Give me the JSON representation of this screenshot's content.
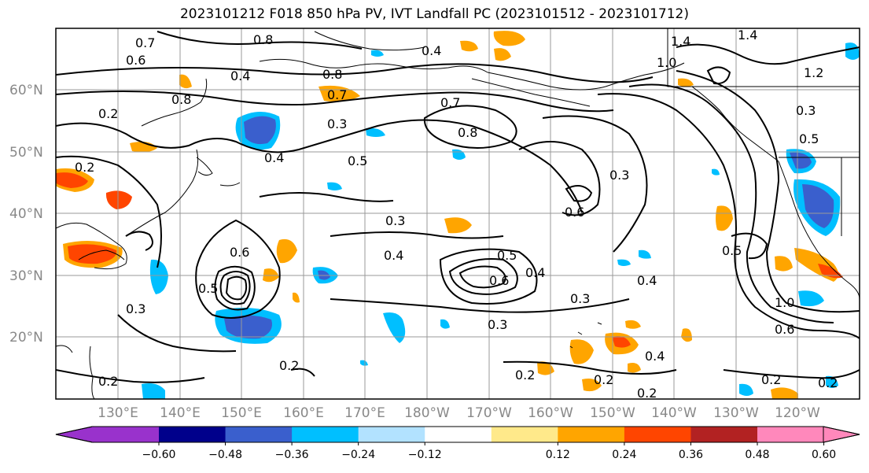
{
  "title": "2023101212 F018 850 hPa PV, IVT Landfall PC (2023101512 - 2023101712)",
  "lat_labels": [
    "60°N",
    "50°N",
    "40°N",
    "30°N",
    "20°N"
  ],
  "lon_labels": [
    "130°E",
    "140°E",
    "150°E",
    "160°E",
    "170°E",
    "180°W",
    "170°W",
    "160°W",
    "150°W",
    "140°W",
    "130°W",
    "120°W"
  ],
  "colorbar": {
    "colors": [
      "#9932cc",
      "#00008b",
      "#3a5fcd",
      "#00bfff",
      "#b2e2ff",
      "#ffffff",
      "#ffe98a",
      "#ffa500",
      "#ff4500",
      "#b22222",
      "#ff88bb"
    ],
    "ticks": [
      "−0.60",
      "−0.48",
      "−0.36",
      "−0.24",
      "−0.12",
      "0.12",
      "0.24",
      "0.36",
      "0.48",
      "0.60"
    ]
  },
  "contour_labels": [
    {
      "t": "0.7"
    },
    {
      "t": "0.6"
    },
    {
      "t": "0.8"
    },
    {
      "t": "0.4"
    },
    {
      "t": "0.4"
    },
    {
      "t": "1.4"
    },
    {
      "t": "1.4"
    },
    {
      "t": "1.0"
    },
    {
      "t": "1.2"
    },
    {
      "t": "0.2"
    },
    {
      "t": "0.8"
    },
    {
      "t": "0.7"
    },
    {
      "t": "0.3"
    },
    {
      "t": "0.8"
    },
    {
      "t": "0.7"
    },
    {
      "t": "0.8"
    },
    {
      "t": "0.5"
    },
    {
      "t": "0.2"
    },
    {
      "t": "0.4"
    },
    {
      "t": "0.5"
    },
    {
      "t": "0.3"
    },
    {
      "t": "0.6"
    },
    {
      "t": "0.3"
    },
    {
      "t": "0.3"
    },
    {
      "t": "0.4"
    },
    {
      "t": "0.5"
    },
    {
      "t": "0.6"
    },
    {
      "t": "0.4"
    },
    {
      "t": "0.5"
    },
    {
      "t": "0.4"
    },
    {
      "t": "0.3"
    },
    {
      "t": "0.3"
    },
    {
      "t": "0.3"
    },
    {
      "t": "0.4"
    },
    {
      "t": "0.2"
    },
    {
      "t": "0.2"
    },
    {
      "t": "0.2"
    },
    {
      "t": "0.2"
    },
    {
      "t": "0.2"
    },
    {
      "t": "0.6"
    },
    {
      "t": "1.0"
    },
    {
      "t": "0.2"
    },
    {
      "t": "0.2"
    },
    {
      "t": "0.6"
    },
    {
      "t": "0.5"
    }
  ]
}
